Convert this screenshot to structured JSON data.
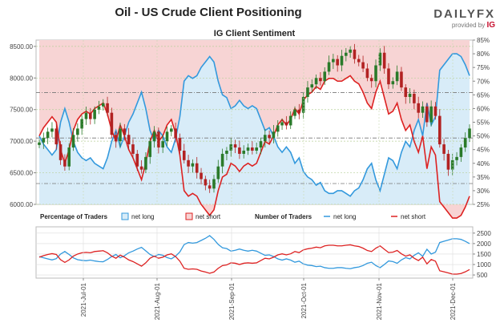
{
  "title": "Oil - US Crude Client Positioning",
  "logo": {
    "brand": "DAILYFX",
    "provided_by": "provided by",
    "provider": "IG"
  },
  "chart_data": [
    {
      "type": "area",
      "title": "IG Client Sentiment",
      "left_axis": {
        "range": [
          6000,
          8600
        ],
        "ticks": [
          "8500.00",
          "8000.00",
          "7500.00",
          "7000.00",
          "6500.00",
          "6000.00"
        ]
      },
      "right_axis": {
        "range": [
          25,
          85
        ],
        "ticks": [
          "85%",
          "80%",
          "75%",
          "70%",
          "65%",
          "60%",
          "55%",
          "50%",
          "45%",
          "40%",
          "35%",
          "30%",
          "25%"
        ]
      },
      "reference_lines": {
        "price_dashed": [
          7770,
          7050,
          6330
        ]
      },
      "series": [
        {
          "kind": "candlestick",
          "color_up": "#2a7a2a",
          "color_down": "#b22222",
          "close": [
            6980,
            7050,
            7150,
            7200,
            6950,
            6700,
            6600,
            6900,
            7100,
            7200,
            7350,
            7450,
            7350,
            7500,
            7550,
            7600,
            7450,
            7100,
            7000,
            7200,
            7100,
            6950,
            6800,
            6600,
            6550,
            6750,
            7000,
            7150,
            6900,
            7000,
            7150,
            7200,
            7050,
            6850,
            6700,
            6600,
            6650,
            6500,
            6400,
            6300,
            6250,
            6400,
            6600,
            6800,
            6850,
            6950,
            6900,
            6800,
            6850,
            6900,
            6850,
            6900,
            7000,
            7100,
            7050,
            7150,
            7250,
            7300,
            7250,
            7400,
            7500,
            7450,
            7700,
            7850,
            7900,
            8000,
            7950,
            8100,
            8250,
            8300,
            8200,
            8350,
            8400,
            8450,
            8300,
            8250,
            8150,
            8000,
            7950,
            8200,
            8400,
            8150,
            7900,
            7950,
            8100,
            7850,
            7700,
            7750,
            7600,
            7450,
            7550,
            7300,
            7550,
            7400,
            6950,
            6800,
            6550,
            6700,
            6750,
            6900,
            7050,
            7200
          ]
        },
        {
          "name": "net long",
          "kind": "percent_area",
          "color": "#3399dd",
          "values": [
            50,
            47,
            45,
            43,
            45,
            55,
            60,
            55,
            48,
            44,
            42,
            41,
            42,
            40,
            39,
            38,
            42,
            48,
            52,
            46,
            50,
            55,
            58,
            62,
            66,
            60,
            52,
            48,
            52,
            50,
            46,
            44,
            49,
            57,
            70,
            72,
            71,
            72,
            75,
            77,
            79,
            77,
            70,
            65,
            64,
            60,
            61,
            63,
            61,
            60,
            61,
            60,
            56,
            52,
            53,
            50,
            46,
            44,
            46,
            44,
            40,
            42,
            37,
            35,
            34,
            32,
            33,
            30,
            29,
            29,
            30,
            30,
            29,
            28,
            30,
            31,
            34,
            38,
            40,
            34,
            30,
            36,
            42,
            41,
            38,
            44,
            48,
            46,
            52,
            56,
            50,
            62,
            54,
            57,
            74,
            76,
            78,
            80,
            80,
            79,
            76,
            72
          ]
        },
        {
          "name": "net short",
          "kind": "percent_area",
          "color": "#dd2222",
          "values": [
            50,
            53,
            55,
            57,
            55,
            45,
            40,
            45,
            52,
            56,
            58,
            59,
            58,
            60,
            61,
            62,
            58,
            52,
            48,
            54,
            50,
            45,
            42,
            38,
            34,
            40,
            48,
            52,
            48,
            50,
            54,
            56,
            51,
            43,
            30,
            28,
            29,
            28,
            25,
            23,
            21,
            23,
            30,
            35,
            36,
            40,
            39,
            37,
            39,
            40,
            39,
            40,
            44,
            48,
            47,
            50,
            54,
            56,
            54,
            56,
            60,
            58,
            63,
            65,
            66,
            68,
            67,
            70,
            71,
            71,
            70,
            70,
            71,
            72,
            70,
            69,
            66,
            62,
            60,
            66,
            70,
            64,
            58,
            59,
            62,
            56,
            52,
            54,
            48,
            44,
            50,
            38,
            46,
            43,
            26,
            24,
            22,
            20,
            20,
            21,
            24,
            28
          ]
        }
      ]
    },
    {
      "type": "line",
      "x_tick_labels": [
        "2021-Jul-01",
        "2021-Aug-01",
        "2021-Sep-01",
        "2021-Oct-01",
        "2021-Nov-01",
        "2021-Dec-01"
      ],
      "right_axis": {
        "range": [
          350,
          2800
        ],
        "ticks": [
          "2500",
          "2000",
          "1500",
          "1000",
          "500"
        ]
      },
      "legend": {
        "pct_label": "Percentage of Traders",
        "num_label": "Number of Traders",
        "long": "net long",
        "short": "net short"
      },
      "series": [
        {
          "name": "net long",
          "color": "#3399dd",
          "values": [
            1380,
            1320,
            1270,
            1220,
            1280,
            1500,
            1620,
            1480,
            1320,
            1230,
            1200,
            1180,
            1210,
            1170,
            1140,
            1130,
            1240,
            1380,
            1480,
            1320,
            1420,
            1560,
            1640,
            1740,
            1820,
            1650,
            1480,
            1380,
            1480,
            1440,
            1330,
            1270,
            1400,
            1600,
            1950,
            2050,
            2020,
            2050,
            2150,
            2250,
            2380,
            2200,
            1960,
            1800,
            1760,
            1640,
            1680,
            1740,
            1680,
            1640,
            1680,
            1640,
            1540,
            1440,
            1460,
            1380,
            1270,
            1210,
            1270,
            1210,
            1110,
            1160,
            1030,
            970,
            950,
            900,
            920,
            850,
            820,
            820,
            850,
            850,
            820,
            800,
            850,
            880,
            950,
            1060,
            1110,
            950,
            850,
            1000,
            1170,
            1140,
            1060,
            1220,
            1330,
            1270,
            1440,
            1560,
            1390,
            1730,
            1500,
            1590,
            2050,
            2110,
            2170,
            2230,
            2230,
            2200,
            2110,
            2000
          ]
        },
        {
          "name": "net short",
          "color": "#dd2222",
          "values": [
            1350,
            1420,
            1480,
            1520,
            1480,
            1230,
            1100,
            1220,
            1400,
            1500,
            1560,
            1580,
            1560,
            1620,
            1640,
            1660,
            1560,
            1400,
            1300,
            1450,
            1350,
            1220,
            1140,
            1030,
            920,
            1080,
            1300,
            1400,
            1300,
            1350,
            1460,
            1510,
            1380,
            1160,
            820,
            770,
            790,
            770,
            690,
            640,
            580,
            640,
            820,
            950,
            980,
            1080,
            1060,
            1000,
            1060,
            1080,
            1060,
            1080,
            1190,
            1300,
            1270,
            1350,
            1460,
            1510,
            1460,
            1510,
            1620,
            1570,
            1700,
            1750,
            1780,
            1830,
            1800,
            1890,
            1920,
            1920,
            1890,
            1890,
            1920,
            1940,
            1890,
            1860,
            1780,
            1670,
            1620,
            1780,
            1890,
            1730,
            1570,
            1590,
            1670,
            1510,
            1400,
            1460,
            1300,
            1190,
            1350,
            1030,
            1240,
            1160,
            700,
            650,
            600,
            540,
            540,
            570,
            650,
            760
          ]
        }
      ]
    }
  ]
}
